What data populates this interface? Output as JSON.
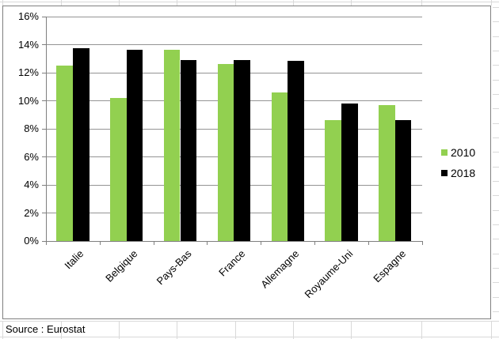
{
  "sheet": {
    "source_label": "Source : Eurostat"
  },
  "colors": {
    "series_2010": "#92D050",
    "series_2018": "#000000",
    "plot_gridline": "#949494",
    "axis": "#7F7F7F",
    "chart_border": "#808080",
    "sheet_gridline": "#D9D9D9",
    "text": "#000000",
    "background": "#FFFFFF"
  },
  "chart_data": {
    "type": "bar",
    "title": "",
    "xlabel": "",
    "ylabel": "",
    "categories": [
      "Italie",
      "Belgique",
      "Pays-Bas",
      "France",
      "Allemagne",
      "Royaume-Uni",
      "Espagne"
    ],
    "series": [
      {
        "name": "2010",
        "color": "#92D050",
        "values": [
          12.5,
          10.2,
          13.6,
          12.6,
          10.6,
          8.6,
          9.7
        ]
      },
      {
        "name": "2018",
        "color": "#000000",
        "values": [
          13.7,
          13.6,
          12.9,
          12.9,
          12.8,
          9.8,
          8.6
        ]
      }
    ],
    "ylim": [
      0,
      16
    ],
    "ytick_step": 2,
    "ytick_format": "percent",
    "ytick_labels": [
      "0%",
      "2%",
      "4%",
      "6%",
      "8%",
      "10%",
      "12%",
      "14%",
      "16%"
    ],
    "grid": true,
    "legend_position": "right",
    "legend_entries": [
      "2010",
      "2018"
    ],
    "source": "Source : Eurostat"
  }
}
